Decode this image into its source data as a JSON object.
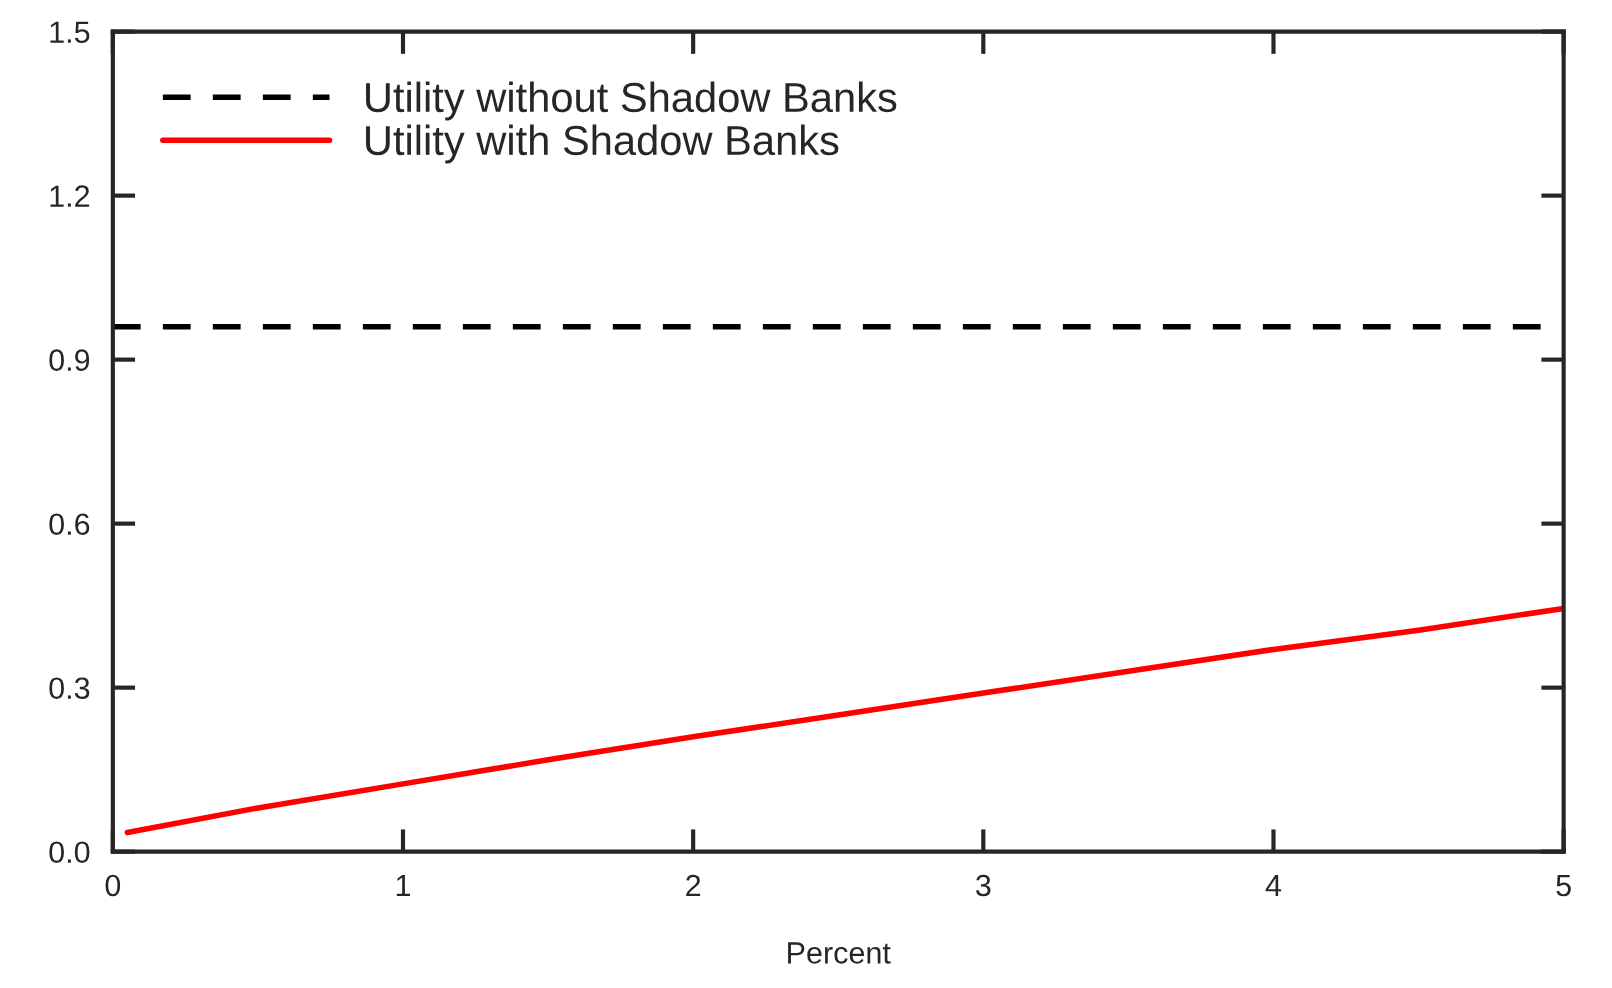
{
  "chart_data": {
    "type": "line",
    "xlabel": "Percent",
    "series": [
      {
        "name": "Utility without Shadow Banks",
        "color": "#000000",
        "line_style": "dashed",
        "x": [
          0,
          5
        ],
        "values": [
          0.96,
          0.96
        ]
      },
      {
        "name": "Utility with Shadow Banks",
        "color": "#ff0000",
        "line_style": "solid",
        "x": [
          0.05,
          0.5,
          1,
          1.5,
          2,
          2.5,
          3,
          3.5,
          4,
          4.5,
          5
        ],
        "values": [
          0.035,
          0.08,
          0.124,
          0.168,
          0.21,
          0.25,
          0.29,
          0.33,
          0.37,
          0.405,
          0.445
        ]
      }
    ],
    "xlim": [
      0,
      5
    ],
    "ylim": [
      0,
      1.5
    ],
    "xticks": [
      0,
      1,
      2,
      3,
      4,
      5
    ],
    "yticks": [
      {
        "value": 0,
        "label": "0.0"
      },
      0.3,
      0.6,
      0.9,
      1.2,
      1.5
    ],
    "grid": false,
    "legend": "top left",
    "marker": "none"
  }
}
